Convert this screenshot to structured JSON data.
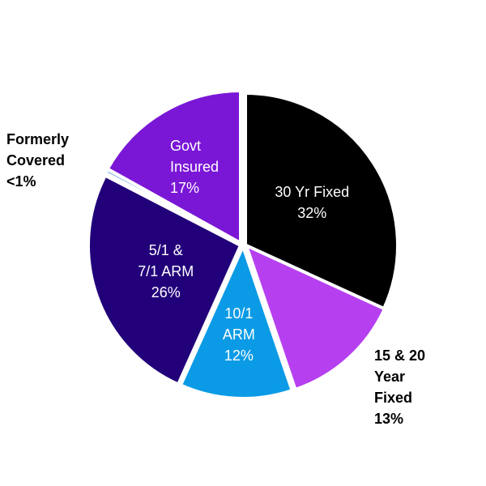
{
  "chart_data": {
    "type": "pie",
    "title": "",
    "start_angle_deg": 0,
    "direction": "clockwise",
    "slices": [
      {
        "label_lines": [
          "30 Yr Fixed",
          "32%"
        ],
        "value": 32,
        "color": "#000000",
        "label_style": "inside"
      },
      {
        "label_lines": [
          "15 & 20",
          "Year",
          "Fixed",
          "13%"
        ],
        "value": 13,
        "color": "#b63ff0",
        "label_style": "outside"
      },
      {
        "label_lines": [
          "10/1",
          "ARM",
          "12%"
        ],
        "value": 12,
        "color": "#0b9be6",
        "label_style": "inside"
      },
      {
        "label_lines": [
          "5/1 &",
          "7/1 ARM",
          "26%"
        ],
        "value": 26,
        "color": "#22007a",
        "label_style": "inside"
      },
      {
        "label_lines": [
          "Formerly",
          "Covered",
          "<1%"
        ],
        "value": 0.5,
        "color": "#a9c6ea",
        "label_style": "outside"
      },
      {
        "label_lines": [
          "Govt",
          "Insured",
          "17%"
        ],
        "value": 17,
        "color": "#7a17d6",
        "label_style": "inside"
      }
    ]
  }
}
